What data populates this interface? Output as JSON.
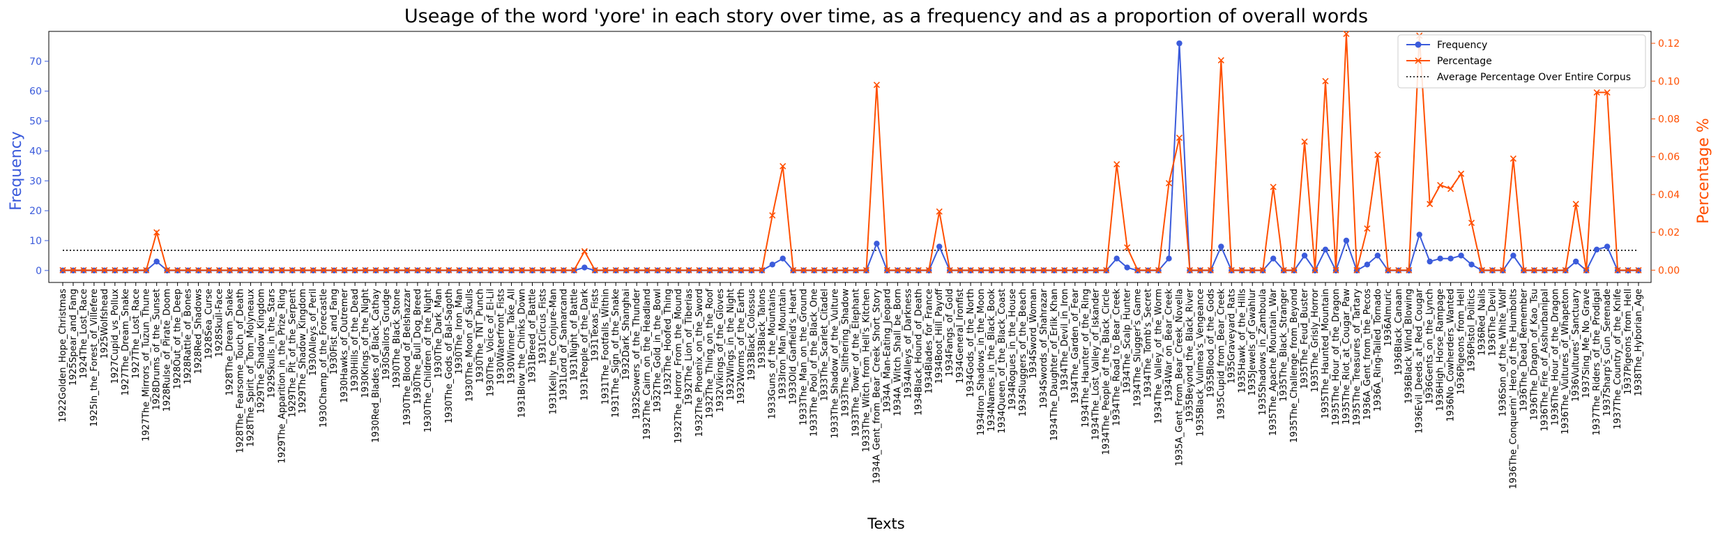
{
  "chart_data": {
    "type": "line",
    "title": "Useage of the word 'yore' in each story over time, as a frequency and as a proportion of overall words",
    "xlabel": "Texts",
    "ylabel_left": "Frequency",
    "ylabel_right": "Percentage %",
    "ylim_left": [
      -4,
      80
    ],
    "ylim_right": [
      -0.0065,
      0.1263
    ],
    "yticks_left": [
      "0",
      "10",
      "20",
      "30",
      "40",
      "50",
      "60",
      "70"
    ],
    "yticks_right": [
      "0.00",
      "0.02",
      "0.04",
      "0.06",
      "0.08",
      "0.10",
      "0.12"
    ],
    "legend_position": "top-right",
    "grid": false,
    "colors": {
      "frequency": "#3b5bdb",
      "percentage": "#ff4f00",
      "average": "#000000",
      "left_axis": "#3b5bdb",
      "right_axis": "#ff4f00"
    },
    "legend": [
      {
        "label": "Frequency",
        "marker": "circle",
        "color": "#3b5bdb"
      },
      {
        "label": "Percentage",
        "marker": "x",
        "color": "#ff4f00"
      },
      {
        "label": "Average Percentage Over Entire Corpus",
        "marker": "dotted",
        "color": "#000000"
      }
    ],
    "average_percentage": 0.0105,
    "categories": [
      "1922Golden_Hope_Christmas",
      "1925Spear_and_Fang",
      "1924The_Lost_Race",
      "1925In_the_Forest_of_Villefere",
      "1925Wolfshead",
      "1927Cupid_vs_Pollux",
      "1927The_Dream_Snake",
      "1927The_Lost_Race",
      "1927The_Mirrors_of_Tuzun_Thune",
      "1928Drums_of_the_Sunset",
      "1928Rulse_of_Pirate_Doom",
      "1928Out_of_the_Deep",
      "1928Rattle_of_Bones",
      "1928Red_Shadows",
      "1928Sea_Curse",
      "1928Skull-Face",
      "1928The_Dream_Snake",
      "1928The_Fearsome_Touch_of_Death",
      "1928The_Spirit_of_Tom_Molyneaux",
      "1929The_Shadow_Kingdom",
      "1929Skulls_in_the_Stars",
      "1929The_Apparition_in_the_Prize_Ring",
      "1929The_Pit_of_the_Serpent",
      "1929The_Shadow_Kingdom",
      "1930Alleys_of_Peril",
      "1930Champ_of_the_Forecastle",
      "1930Fist_and_Fang",
      "1930Hawks_of_Outremer",
      "1930Hills_of_the_Dead",
      "1930Kings_of_the_Night",
      "1930Red_Blades_of_Black_Cathay",
      "1930Sailors_Grudge",
      "1930The_Black_Stone",
      "1930The_Blood_of_Belshazzar",
      "1930The_Bull_Dog_Breed",
      "1930The_Children_of_the_Night",
      "1930The_Dark_Man",
      "1930The_Gods_of_Bal-Sagoth",
      "1930The_Iron_Man",
      "1930The_Moon_of_Skulls",
      "1930The_TNT_Punch",
      "1930The_Voice_of_El-Lil",
      "1930Waterfront_Fists",
      "1930Winner_Take_All",
      "1931Blow_the_Chinks_Down",
      "1931Breed_of_Battle",
      "1931Circus_Fists",
      "1931Kelly_the_Conjure-Man",
      "1931Lord_of_Samarcand",
      "1931Night_of_Battle",
      "1931People_of_the_Dark",
      "1931Texas_Fists",
      "1931The_Footfalls_Within",
      "1931The_Sign_of_the_Snake",
      "1932Dark_Shanghai",
      "1932Sowers_of_the_Thunder",
      "1932The_Cairn_on_the_Headland",
      "1932The_Gold_in_the_Bowl",
      "1932The_Hoofed_Thing",
      "1932The_Horror_From_the_Mound",
      "1932The_Lion_of_Tiberias",
      "1932The_Phoenix_on_the_Sword",
      "1932The_Thing_on_the_Roof",
      "1932Vikings_of_the_Gloves",
      "1932Wings_in_the_Night",
      "1932Worms_of_the_Earth",
      "1933Black_Colossus",
      "1933Black_Talons",
      "1933Guns_of_the_Mountains",
      "1933Iron_Man_Mountain",
      "1933Old_Garfield's_Heart",
      "1933The_Man_on_the_Ground",
      "1933The_Pool_of_the_Black_One",
      "1933The_Scarlet_Citadel",
      "1933The_Shadow_of_the_Vulture",
      "1933The_Slithering_Shadow",
      "1933The_Tower_of_the_Elephant",
      "1933The_Witch_from_Hell's_Kitchen",
      "1934A_Gent_from_Bear_Creek_Short_Story",
      "1934A_Man-Eating_Jeopard",
      "1934A_Witch_Shall_be_Born",
      "1934Alleys_of_Darkness",
      "1934Black_Hound_of_Death",
      "1934Blades_for_France",
      "1934Boot_Hill_Payoff",
      "1934Fangs_of_Gold",
      "1934General_Ironfist",
      "1934Gods_of_the_North",
      "1934Iron_Shadows_in_the_Moon",
      "1934Names_in_the_Black_Book",
      "1934Queen_of_the_Black_Coast",
      "1934Rogues_in_the_House",
      "1934Sluggers_of_the_Beach",
      "1934Sword_Woman",
      "1934Swords_of_Shahrazar",
      "1934The_Daughter_of_Erlik_Khan",
      "1934The_Devil_in_Iron",
      "1934The_Garden_of_Fear",
      "1934The_Haunter_of_the_Ring",
      "1934The_Lost_Valley_of_Iskander",
      "1934The_People_of_the_Black_Circle",
      "1934The_Road_to_Bear_Creek",
      "1934The_Scalp_Hunter",
      "1934The_Slugger's_Game",
      "1934The_Tomb's_Secret",
      "1934The_Valley_of_the_Worm",
      "1934War_on_Bear_Creek",
      "1935A_Gent_From_Bear_Creek_Novella",
      "1935Beyond_the_Black_River",
      "1935Black_Vulmea's_Vengeance",
      "1935Blood_of_the_Gods",
      "1935Cupid_from_Bear_Creek",
      "1935Graveyard_Rats",
      "1935Hawk_of_the_Hills",
      "1935Jewels_of_Gwahlur",
      "1935Shadows_in_Zamboula",
      "1935The_Apache_Mountain_War",
      "1935The_Black_Stranger",
      "1935The_Challenge_from_Beyond",
      "1935The_Feud_Buster",
      "1935The_Grisly_Horror",
      "1935The_Haunted_Mountain",
      "1935The_Hour_of_the_Dragon",
      "1935The_Riot_at_Cougar_Paw",
      "1935The_Treasures_of_Tartary",
      "1936A_Gent_from_the_Pecos",
      "1936A_Ring-Tailed_Tornado",
      "1936Almuric",
      "1936Black_Canaan",
      "1936Black_Wind_Blowing",
      "1936Evil_Deeds_at_Red_Cougar",
      "1936Gents_on_the_Lynch",
      "1936High_Horse_Rampage",
      "1936No_Cowherders_Wanted",
      "1936Pigeons_from_Hell",
      "1936Pistol_Politics",
      "1936Red_Nails",
      "1936The_Devil",
      "1936Son_of_the_White_Wolf",
      "1936The_Conquerin'_Hero_of_the_Humbolts",
      "1936The_Dead_Remember",
      "1936The_Dragon_of_Kao_Tsu",
      "1936The_Fire_of_Asshurbanipal",
      "1936The_Hour_of_the_Dragon",
      "1936The_Vultures_of_Whapeton",
      "1936Vultures'_Sanctuary",
      "1937Sing_Me_No_Grave",
      "1937The_Riders_of_the_Prodigal",
      "1937Sharp's_Gun_Serenade",
      "1937The_Country_of_the_Knife",
      "1937Pigeons_from_Hell",
      "1938The_Hyborian_Age"
    ],
    "series": [
      {
        "name": "Frequency",
        "axis": "left",
        "values": [
          0,
          0,
          0,
          0,
          0,
          0,
          0,
          0,
          0,
          3,
          0,
          0,
          0,
          0,
          0,
          0,
          0,
          0,
          0,
          0,
          0,
          0,
          0,
          0,
          0,
          0,
          0,
          0,
          0,
          0,
          0,
          0,
          0,
          0,
          0,
          0,
          0,
          0,
          0,
          0,
          0,
          0,
          0,
          0,
          0,
          0,
          0,
          0,
          0,
          0,
          1,
          0,
          0,
          0,
          0,
          0,
          0,
          0,
          0,
          0,
          0,
          0,
          0,
          0,
          0,
          0,
          0,
          0,
          2,
          4,
          0,
          0,
          0,
          0,
          0,
          0,
          0,
          0,
          9,
          0,
          0,
          0,
          0,
          0,
          8,
          0,
          0,
          0,
          0,
          0,
          0,
          0,
          0,
          0,
          0,
          0,
          0,
          0,
          0,
          0,
          0,
          4,
          1,
          0,
          0,
          0,
          4,
          76,
          0,
          0,
          0,
          8,
          0,
          0,
          0,
          0,
          4,
          0,
          0,
          5,
          0,
          7,
          0,
          10,
          0,
          2,
          5,
          0,
          0,
          0,
          12,
          3,
          4,
          4,
          5,
          2,
          0,
          0,
          0,
          5,
          0,
          0,
          0,
          0,
          0,
          3,
          0,
          7,
          8,
          0,
          0,
          0
        ]
      },
      {
        "name": "Percentage",
        "axis": "right",
        "values": [
          0,
          0,
          0,
          0,
          0,
          0,
          0,
          0,
          0,
          0.02,
          0,
          0,
          0,
          0,
          0,
          0,
          0,
          0,
          0,
          0,
          0,
          0,
          0,
          0,
          0,
          0,
          0,
          0,
          0,
          0,
          0,
          0,
          0,
          0,
          0,
          0,
          0,
          0,
          0,
          0,
          0,
          0,
          0,
          0,
          0,
          0,
          0,
          0,
          0,
          0,
          0.01,
          0,
          0,
          0,
          0,
          0,
          0,
          0,
          0,
          0,
          0,
          0,
          0,
          0,
          0,
          0,
          0,
          0,
          0.029,
          0.055,
          0,
          0,
          0,
          0,
          0,
          0,
          0,
          0,
          0.098,
          0,
          0,
          0,
          0,
          0,
          0.031,
          0,
          0,
          0,
          0,
          0,
          0,
          0,
          0,
          0,
          0,
          0,
          0,
          0,
          0,
          0,
          0,
          0.056,
          0.012,
          0,
          0,
          0,
          0.046,
          0.07,
          0,
          0,
          0,
          0.111,
          0,
          0,
          0,
          0,
          0.044,
          0,
          0,
          0.068,
          0,
          0.1,
          0,
          0.125,
          0,
          0.022,
          0.061,
          0,
          0,
          0,
          0.124,
          0.035,
          0.045,
          0.043,
          0.051,
          0.025,
          0,
          0,
          0,
          0.059,
          0,
          0,
          0,
          0,
          0,
          0.035,
          0,
          0.094,
          0.094,
          0,
          0,
          0
        ]
      }
    ]
  }
}
